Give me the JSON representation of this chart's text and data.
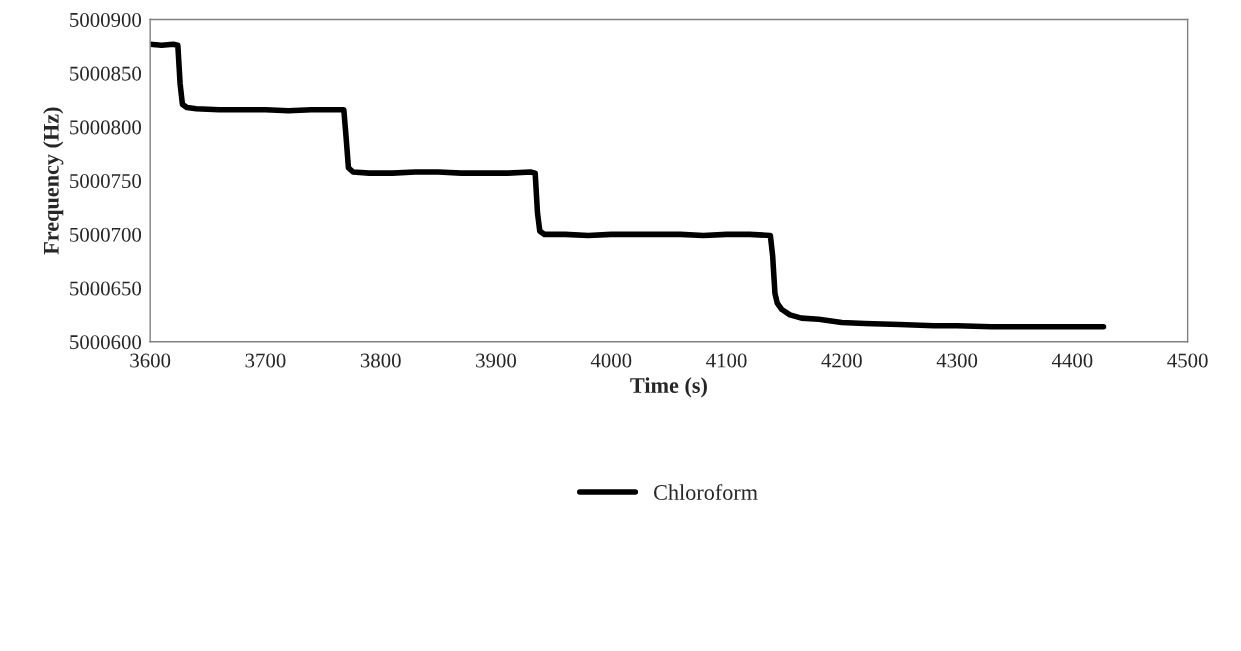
{
  "chart_data": {
    "type": "line",
    "xlabel": "Time (s)",
    "ylabel": "Frequency (Hz)",
    "xlim": [
      3600,
      4500
    ],
    "xticks": [
      3600,
      3700,
      3800,
      3900,
      4000,
      4100,
      4200,
      4300,
      4400,
      4500
    ],
    "ylim": [
      5000600,
      5000900
    ],
    "yticks": [
      5000600,
      5000650,
      5000700,
      5000750,
      5000800,
      5000850,
      5000900
    ],
    "grid": false,
    "legend": "bottom",
    "marker": "none",
    "line_style": "solid",
    "series": [
      {
        "name": "Chloroform",
        "color": "#000000",
        "x": [
          3600,
          3610,
          3620,
          3624,
          3626,
          3628,
          3632,
          3640,
          3660,
          3680,
          3700,
          3720,
          3740,
          3760,
          3768,
          3770,
          3772,
          3776,
          3790,
          3810,
          3830,
          3850,
          3870,
          3890,
          3910,
          3930,
          3934,
          3936,
          3938,
          3942,
          3960,
          3980,
          4000,
          4020,
          4040,
          4060,
          4080,
          4100,
          4120,
          4138,
          4140,
          4142,
          4144,
          4148,
          4155,
          4165,
          4180,
          4200,
          4220,
          4250,
          4280,
          4300,
          4330,
          4360,
          4380,
          4400,
          4427
        ],
        "values": [
          5000877,
          5000876,
          5000877,
          5000876,
          5000840,
          5000821,
          5000818,
          5000817,
          5000816,
          5000816,
          5000816,
          5000815,
          5000816,
          5000816,
          5000816,
          5000790,
          5000762,
          5000758,
          5000757,
          5000757,
          5000758,
          5000758,
          5000757,
          5000757,
          5000757,
          5000758,
          5000757,
          5000720,
          5000703,
          5000700,
          5000700,
          5000699,
          5000700,
          5000700,
          5000700,
          5000700,
          5000699,
          5000700,
          5000700,
          5000699,
          5000680,
          5000645,
          5000636,
          5000630,
          5000625,
          5000622,
          5000621,
          5000618,
          5000617,
          5000616,
          5000615,
          5000615,
          5000614,
          5000614,
          5000614,
          5000614,
          5000614
        ]
      }
    ]
  }
}
